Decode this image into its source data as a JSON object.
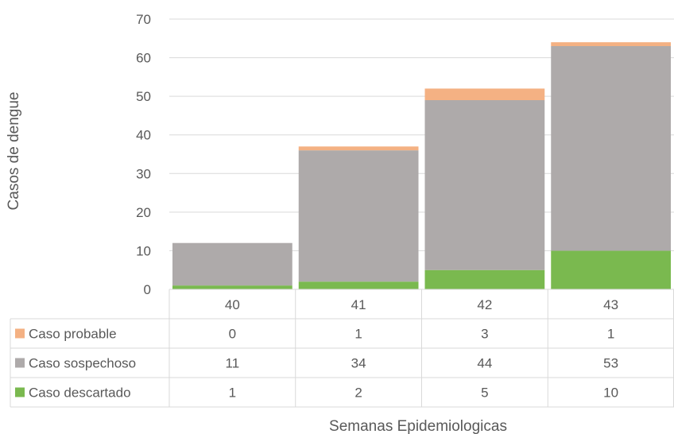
{
  "chart_data": {
    "type": "bar",
    "stacked": true,
    "categories": [
      "40",
      "41",
      "42",
      "43"
    ],
    "series": [
      {
        "name": "Caso descartado",
        "values": [
          1,
          2,
          5,
          10
        ],
        "color": "#7AB94F"
      },
      {
        "name": "Caso sospechoso",
        "values": [
          11,
          34,
          44,
          53
        ],
        "color": "#AEAAAA"
      },
      {
        "name": "Caso probable",
        "values": [
          0,
          1,
          3,
          1
        ],
        "color": "#F4B183"
      }
    ],
    "table_row_order": [
      "Caso probable",
      "Caso sospechoso",
      "Caso descartado"
    ],
    "ylabel": "Casos de dengue",
    "xlabel": "Semanas Epidemiologicas",
    "ylim": [
      0,
      70
    ],
    "yticks": [
      0,
      10,
      20,
      30,
      40,
      50,
      60,
      70
    ],
    "grid": true,
    "legend": "data-table"
  }
}
